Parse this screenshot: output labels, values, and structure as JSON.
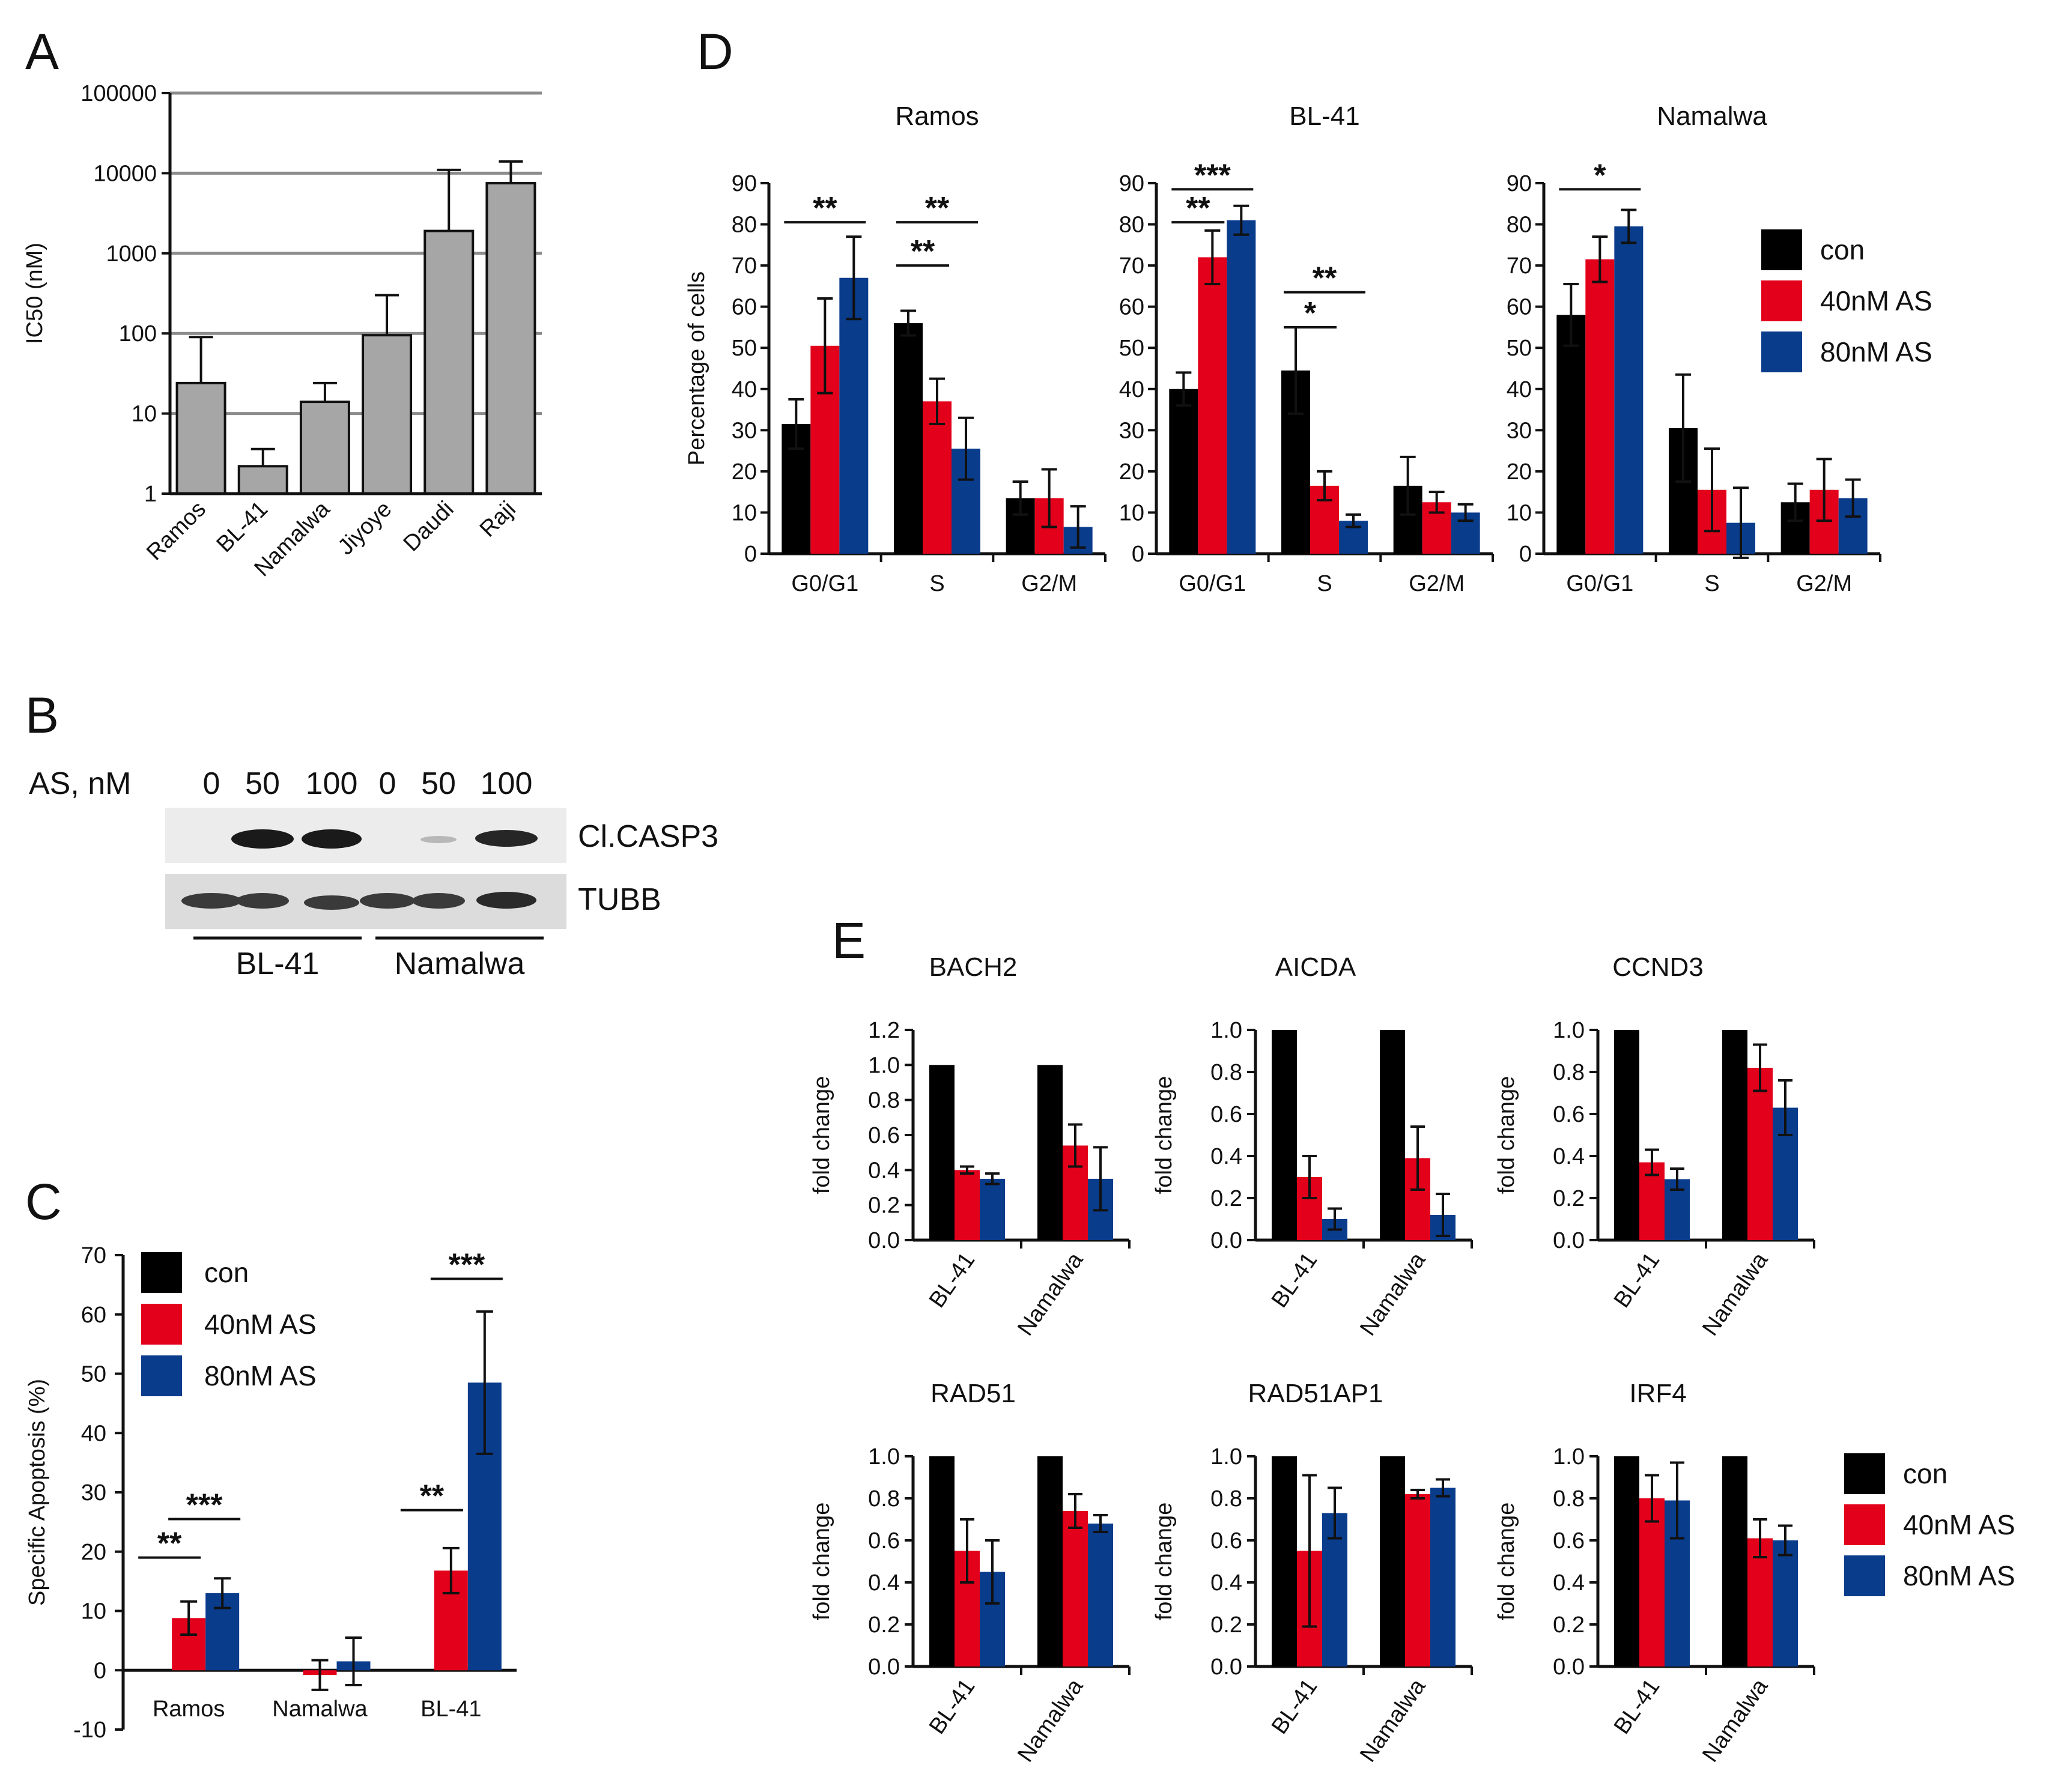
{
  "colors": {
    "con": "#000000",
    "as40": "#e3001b",
    "as80": "#0a3c8c",
    "gray": "#a6a6a6",
    "gridline": "#8c8c8c"
  },
  "panel_labels": {
    "a": "A",
    "b": "B",
    "c": "C",
    "d": "D",
    "e": "E"
  },
  "legend": {
    "con": "con",
    "as40": "40nM AS",
    "as80": "80nM AS"
  },
  "panel_b": {
    "row_label": "AS, nM",
    "doses": [
      "0",
      "50",
      "100",
      "0",
      "50",
      "100"
    ],
    "bands": [
      "Cl.CASP3",
      "TUBB"
    ],
    "groups": [
      "BL-41",
      "Namalwa"
    ]
  },
  "chart_data": [
    {
      "id": "A",
      "type": "bar",
      "yscale": "log",
      "title": "",
      "xlabel": "",
      "ylabel": "IC50 (nM)",
      "ylim": [
        1,
        100000
      ],
      "ytick_labels": [
        "1",
        "10",
        "100",
        "1000",
        "10000",
        "100000"
      ],
      "categories": [
        "Ramos",
        "BL-41",
        "Namalwa",
        "Jiyoye",
        "Daudi",
        "Raji"
      ],
      "values": [
        24,
        2.2,
        14,
        95,
        1900,
        7500
      ],
      "errors": [
        90,
        3.6,
        24,
        300,
        11000,
        14000
      ],
      "grid": true
    },
    {
      "id": "C",
      "type": "bar",
      "title": "",
      "xlabel": "",
      "ylabel": "Specific Apoptosis (%)",
      "ylim": [
        -10,
        70
      ],
      "ytick_labels": [
        "-10",
        "0",
        "10",
        "20",
        "30",
        "40",
        "50",
        "60",
        "70"
      ],
      "categories": [
        "Ramos",
        "Namalwa",
        "BL-41"
      ],
      "series": [
        {
          "name": "con",
          "values": [
            0,
            0,
            0
          ],
          "errors": [
            0,
            0,
            0
          ]
        },
        {
          "name": "40nM AS",
          "values": [
            8.8,
            -0.8,
            16.8
          ],
          "errors": [
            2.8,
            2.5,
            3.8
          ]
        },
        {
          "name": "80nM AS",
          "values": [
            13,
            1.5,
            48.5
          ],
          "errors": [
            2.5,
            4.0,
            12
          ]
        }
      ],
      "significance": [
        "**",
        "***",
        "**",
        "***"
      ]
    },
    {
      "id": "D",
      "type": "bar",
      "ylabel": "Percentage of cells",
      "ylim": [
        0,
        90
      ],
      "ytick_labels": [
        "0",
        "10",
        "20",
        "30",
        "40",
        "50",
        "60",
        "70",
        "80",
        "90"
      ],
      "categories": [
        "G0/G1",
        "S",
        "G2/M"
      ],
      "subplots": [
        {
          "title": "Ramos",
          "series": [
            {
              "name": "con",
              "values": [
                31.5,
                56,
                13.5
              ],
              "errors": [
                6,
                3,
                4
              ]
            },
            {
              "name": "40nM AS",
              "values": [
                50.5,
                37,
                13.5
              ],
              "errors": [
                11.5,
                5.5,
                7
              ]
            },
            {
              "name": "80nM AS",
              "values": [
                67,
                25.5,
                6.5
              ],
              "errors": [
                10,
                7.5,
                5
              ]
            }
          ],
          "significance": [
            "**",
            "**",
            "**"
          ]
        },
        {
          "title": "BL-41",
          "series": [
            {
              "name": "con",
              "values": [
                40,
                44.5,
                16.5
              ],
              "errors": [
                4,
                10.5,
                7
              ]
            },
            {
              "name": "40nM AS",
              "values": [
                72,
                16.5,
                12.5
              ],
              "errors": [
                6.5,
                3.5,
                2.5
              ]
            },
            {
              "name": "80nM AS",
              "values": [
                81,
                8,
                10
              ],
              "errors": [
                3.5,
                1.5,
                2
              ]
            }
          ],
          "significance": [
            "***",
            "**",
            "**",
            "*"
          ]
        },
        {
          "title": "Namalwa",
          "series": [
            {
              "name": "con",
              "values": [
                58,
                30.5,
                12.5
              ],
              "errors": [
                7.5,
                13,
                4.5
              ]
            },
            {
              "name": "40nM AS",
              "values": [
                71.5,
                15.5,
                15.5
              ],
              "errors": [
                5.5,
                10,
                7.5
              ]
            },
            {
              "name": "80nM AS",
              "values": [
                79.5,
                7.5,
                13.5
              ],
              "errors": [
                4,
                8.5,
                4.5
              ]
            }
          ],
          "significance": [
            "*"
          ]
        }
      ]
    },
    {
      "id": "E",
      "type": "bar",
      "ylabel": "fold change",
      "categories": [
        "BL-41",
        "Namalwa"
      ],
      "subplots": [
        {
          "title": "BACH2",
          "ylim": [
            0,
            1.2
          ],
          "ytick_labels": [
            "0.0",
            "0.2",
            "0.4",
            "0.6",
            "0.8",
            "1.0",
            "1.2"
          ],
          "series": [
            {
              "name": "con",
              "values": [
                1.0,
                1.0
              ],
              "errors": [
                0,
                0
              ]
            },
            {
              "name": "40nM AS",
              "values": [
                0.4,
                0.54
              ],
              "errors": [
                0.02,
                0.12
              ]
            },
            {
              "name": "80nM AS",
              "values": [
                0.35,
                0.35
              ],
              "errors": [
                0.03,
                0.18
              ]
            }
          ]
        },
        {
          "title": "AICDA",
          "ylim": [
            0,
            1.0
          ],
          "ytick_labels": [
            "0.0",
            "0.2",
            "0.4",
            "0.6",
            "0.8",
            "1.0"
          ],
          "series": [
            {
              "name": "con",
              "values": [
                1.0,
                1.0
              ],
              "errors": [
                0,
                0
              ]
            },
            {
              "name": "40nM AS",
              "values": [
                0.3,
                0.39
              ],
              "errors": [
                0.1,
                0.15
              ]
            },
            {
              "name": "80nM AS",
              "values": [
                0.1,
                0.12
              ],
              "errors": [
                0.05,
                0.1
              ]
            }
          ]
        },
        {
          "title": "CCND3",
          "ylim": [
            0,
            1.0
          ],
          "ytick_labels": [
            "0.0",
            "0.2",
            "0.4",
            "0.6",
            "0.8",
            "1.0"
          ],
          "series": [
            {
              "name": "con",
              "values": [
                1.0,
                1.0
              ],
              "errors": [
                0,
                0
              ]
            },
            {
              "name": "40nM AS",
              "values": [
                0.37,
                0.82
              ],
              "errors": [
                0.06,
                0.11
              ]
            },
            {
              "name": "80nM AS",
              "values": [
                0.29,
                0.63
              ],
              "errors": [
                0.05,
                0.13
              ]
            }
          ]
        },
        {
          "title": "RAD51",
          "ylim": [
            0,
            1.0
          ],
          "ytick_labels": [
            "0.0",
            "0.2",
            "0.4",
            "0.6",
            "0.8",
            "1.0"
          ],
          "series": [
            {
              "name": "con",
              "values": [
                1.0,
                1.0
              ],
              "errors": [
                0,
                0
              ]
            },
            {
              "name": "40nM AS",
              "values": [
                0.55,
                0.74
              ],
              "errors": [
                0.15,
                0.08
              ]
            },
            {
              "name": "80nM AS",
              "values": [
                0.45,
                0.68
              ],
              "errors": [
                0.15,
                0.04
              ]
            }
          ]
        },
        {
          "title": "RAD51AP1",
          "ylim": [
            0,
            1.0
          ],
          "ytick_labels": [
            "0.0",
            "0.2",
            "0.4",
            "0.6",
            "0.8",
            "1.0"
          ],
          "series": [
            {
              "name": "con",
              "values": [
                1.0,
                1.0
              ],
              "errors": [
                0,
                0
              ]
            },
            {
              "name": "40nM AS",
              "values": [
                0.55,
                0.82
              ],
              "errors": [
                0.36,
                0.02
              ]
            },
            {
              "name": "80nM AS",
              "values": [
                0.73,
                0.85
              ],
              "errors": [
                0.12,
                0.04
              ]
            }
          ]
        },
        {
          "title": "IRF4",
          "ylim": [
            0,
            1.0
          ],
          "ytick_labels": [
            "0.0",
            "0.2",
            "0.4",
            "0.6",
            "0.8",
            "1.0"
          ],
          "series": [
            {
              "name": "con",
              "values": [
                1.0,
                1.0
              ],
              "errors": [
                0,
                0
              ]
            },
            {
              "name": "40nM AS",
              "values": [
                0.8,
                0.61
              ],
              "errors": [
                0.11,
                0.09
              ]
            },
            {
              "name": "80nM AS",
              "values": [
                0.79,
                0.6
              ],
              "errors": [
                0.18,
                0.07
              ]
            }
          ]
        }
      ]
    }
  ]
}
